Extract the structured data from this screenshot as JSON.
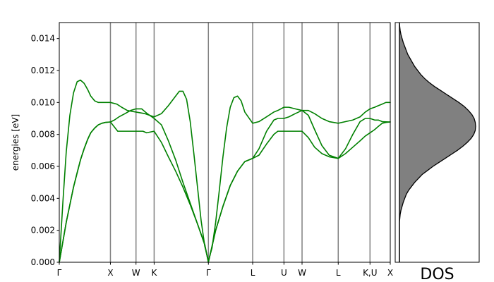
{
  "chart_data": [
    {
      "type": "line",
      "ylabel": "energies [eV]",
      "xlabel": "",
      "ylim": [
        0,
        0.015
      ],
      "yticks": [
        0.0,
        0.002,
        0.004,
        0.006,
        0.008,
        0.01,
        0.012,
        0.014
      ],
      "ytick_labels": [
        "0.000",
        "0.002",
        "0.004",
        "0.006",
        "0.008",
        "0.010",
        "0.012",
        "0.014"
      ],
      "xlim": [
        0,
        1
      ],
      "high_symmetry_points": [
        {
          "label": "Γ",
          "x": 0.0
        },
        {
          "label": "X",
          "x": 0.1545
        },
        {
          "label": "W",
          "x": 0.2318
        },
        {
          "label": "K",
          "x": 0.2866
        },
        {
          "label": "Γ",
          "x": 0.4505
        },
        {
          "label": "L",
          "x": 0.5843
        },
        {
          "label": "U",
          "x": 0.6788
        },
        {
          "label": "W",
          "x": 0.7335
        },
        {
          "label": "L",
          "x": 0.8428
        },
        {
          "label": "K,U",
          "x": 0.9388
        },
        {
          "label": "X",
          "x": 1.0
        }
      ],
      "line_color": "#008000",
      "grid": false,
      "series": [
        {
          "x": [
            0.0,
            0.011,
            0.021,
            0.032,
            0.043,
            0.054,
            0.064,
            0.075,
            0.086,
            0.095,
            0.107,
            0.118,
            0.129,
            0.139,
            0.1545,
            0.1765,
            0.1985,
            0.2215,
            0.2318,
            0.2418,
            0.2528,
            0.2638,
            0.2866,
            0.3086,
            0.3296,
            0.3516,
            0.3736,
            0.3956,
            0.4176,
            0.4396,
            0.4505,
            0.4615,
            0.4725,
            0.4945,
            0.5165,
            0.5385,
            0.5605,
            0.5843,
            0.6033,
            0.6263,
            0.6483,
            0.6603,
            0.6788,
            0.6938,
            0.7128,
            0.7335,
            0.7525,
            0.7715,
            0.7935,
            0.8155,
            0.8428,
            0.8648,
            0.8868,
            0.9088,
            0.9245,
            0.9388,
            0.9528,
            0.9638,
            0.9758,
            0.9868,
            1.0
          ],
          "y": [
            0.0,
            0.0013,
            0.0025,
            0.0036,
            0.0047,
            0.0056,
            0.0064,
            0.0071,
            0.0077,
            0.0081,
            0.0084,
            0.0086,
            0.0087,
            0.00875,
            0.00878,
            0.0082,
            0.0082,
            0.0082,
            0.0082,
            0.0082,
            0.0082,
            0.0081,
            0.0082,
            0.0075,
            0.0066,
            0.0057,
            0.0047,
            0.0036,
            0.0024,
            0.0011,
            0.0,
            0.001,
            0.002,
            0.0035,
            0.0048,
            0.0057,
            0.0063,
            0.0065,
            0.0067,
            0.0074,
            0.008,
            0.0082,
            0.0082,
            0.0082,
            0.0082,
            0.0082,
            0.0078,
            0.0072,
            0.0068,
            0.0066,
            0.0065,
            0.0068,
            0.0072,
            0.0076,
            0.0079,
            0.0081,
            0.0083,
            0.0085,
            0.0087,
            0.00875,
            0.00878
          ]
        },
        {
          "x": [
            0.0,
            0.011,
            0.021,
            0.032,
            0.043,
            0.054,
            0.064,
            0.075,
            0.086,
            0.095,
            0.107,
            0.118,
            0.129,
            0.139,
            0.1545,
            0.1665,
            0.1805,
            0.1985,
            0.2155,
            0.2318,
            0.2488,
            0.2658,
            0.2866,
            0.3086,
            0.3296,
            0.3516,
            0.3736,
            0.3956,
            0.4176,
            0.4396,
            0.4505,
            0.4615,
            0.4725,
            0.4945,
            0.5165,
            0.5385,
            0.5605,
            0.5843,
            0.6033,
            0.6263,
            0.6483,
            0.6603,
            0.6788,
            0.6938,
            0.7128,
            0.7335,
            0.7525,
            0.7715,
            0.7935,
            0.8155,
            0.8428,
            0.8648,
            0.8868,
            0.9088,
            0.9245,
            0.9388,
            0.9528,
            0.9638,
            0.9758,
            0.9868,
            1.0
          ],
          "y": [
            0.0,
            0.0013,
            0.0025,
            0.0036,
            0.0047,
            0.0056,
            0.0064,
            0.0071,
            0.0077,
            0.0081,
            0.0084,
            0.0086,
            0.0087,
            0.00875,
            0.00878,
            0.0089,
            0.0091,
            0.0093,
            0.0095,
            0.0096,
            0.0096,
            0.0093,
            0.009,
            0.0086,
            0.0076,
            0.0064,
            0.005,
            0.0037,
            0.0024,
            0.0011,
            0.0,
            0.001,
            0.002,
            0.0035,
            0.0048,
            0.0057,
            0.0063,
            0.0065,
            0.0071,
            0.0082,
            0.0089,
            0.009,
            0.009,
            0.0091,
            0.0093,
            0.0095,
            0.0092,
            0.0083,
            0.0073,
            0.0067,
            0.0065,
            0.0071,
            0.008,
            0.0088,
            0.009,
            0.009,
            0.0089,
            0.0089,
            0.0088,
            0.00879,
            0.00878
          ]
        },
        {
          "x": [
            0.0,
            0.011,
            0.021,
            0.032,
            0.043,
            0.054,
            0.064,
            0.075,
            0.086,
            0.095,
            0.107,
            0.118,
            0.129,
            0.139,
            0.1545,
            0.1735,
            0.1885,
            0.2055,
            0.2318,
            0.2588,
            0.2866,
            0.3086,
            0.3296,
            0.3516,
            0.3626,
            0.3736,
            0.3846,
            0.3956,
            0.4066,
            0.4176,
            0.4286,
            0.4396,
            0.4505,
            0.4615,
            0.4725,
            0.4835,
            0.4945,
            0.5055,
            0.5165,
            0.5275,
            0.5385,
            0.5495,
            0.5605,
            0.5843,
            0.6033,
            0.6263,
            0.6483,
            0.6603,
            0.6788,
            0.6938,
            0.7128,
            0.7335,
            0.7525,
            0.7715,
            0.7935,
            0.8155,
            0.8428,
            0.8648,
            0.8868,
            0.9088,
            0.9245,
            0.9388,
            0.9528,
            0.9638,
            0.9758,
            0.9868,
            1.0
          ],
          "y": [
            0.0,
            0.0038,
            0.0069,
            0.0092,
            0.0106,
            0.0113,
            0.0114,
            0.0112,
            0.0108,
            0.0104,
            0.0101,
            0.01,
            0.01,
            0.01,
            0.01,
            0.0099,
            0.0097,
            0.0095,
            0.0094,
            0.0093,
            0.0091,
            0.0093,
            0.0098,
            0.0104,
            0.0107,
            0.0107,
            0.0102,
            0.0088,
            0.0068,
            0.0047,
            0.0026,
            0.001,
            0.0001,
            0.0009,
            0.0025,
            0.0045,
            0.0066,
            0.0084,
            0.0097,
            0.0103,
            0.0104,
            0.0101,
            0.0094,
            0.0087,
            0.0088,
            0.0091,
            0.0094,
            0.0095,
            0.0097,
            0.0097,
            0.0096,
            0.0095,
            0.0095,
            0.0093,
            0.009,
            0.0088,
            0.0087,
            0.0088,
            0.0089,
            0.0091,
            0.0094,
            0.0096,
            0.0097,
            0.0098,
            0.0099,
            0.01,
            0.01
          ]
        }
      ]
    },
    {
      "type": "area",
      "xlabel": "DOS",
      "ylim": [
        0,
        0.015
      ],
      "fill_color": "#808080",
      "line_color": "#000000",
      "x": [
        0.0,
        0.0,
        0.0,
        0.0,
        0.0,
        0.0,
        0.0,
        0.0,
        0.0,
        0.0,
        0.0,
        0.005,
        0.01,
        0.02,
        0.035,
        0.05,
        0.07,
        0.09,
        0.12,
        0.16,
        0.2,
        0.25,
        0.3,
        0.37,
        0.44,
        0.52,
        0.6,
        0.68,
        0.76,
        0.83,
        0.89,
        0.94,
        0.975,
        0.995,
        1.0,
        0.995,
        0.98,
        0.95,
        0.905,
        0.85,
        0.78,
        0.7,
        0.62,
        0.54,
        0.46,
        0.39,
        0.33,
        0.28,
        0.24,
        0.2,
        0.17,
        0.14,
        0.11,
        0.09,
        0.07,
        0.05,
        0.035,
        0.02,
        0.01,
        0.004,
        0.0
      ],
      "y": [
        0.0,
        0.00025,
        0.0005,
        0.00075,
        0.001,
        0.00125,
        0.0015,
        0.00175,
        0.002,
        0.00225,
        0.0025,
        0.00275,
        0.003,
        0.00325,
        0.0035,
        0.00375,
        0.004,
        0.00425,
        0.0045,
        0.00475,
        0.005,
        0.00525,
        0.0055,
        0.00575,
        0.006,
        0.00625,
        0.0065,
        0.00675,
        0.007,
        0.00725,
        0.0075,
        0.00775,
        0.008,
        0.00825,
        0.0085,
        0.00875,
        0.009,
        0.00925,
        0.0095,
        0.00975,
        0.01,
        0.01025,
        0.0105,
        0.01075,
        0.011,
        0.01125,
        0.0115,
        0.01175,
        0.012,
        0.01225,
        0.0125,
        0.01275,
        0.013,
        0.01325,
        0.0135,
        0.01375,
        0.014,
        0.01425,
        0.0145,
        0.01475,
        0.015
      ]
    }
  ]
}
